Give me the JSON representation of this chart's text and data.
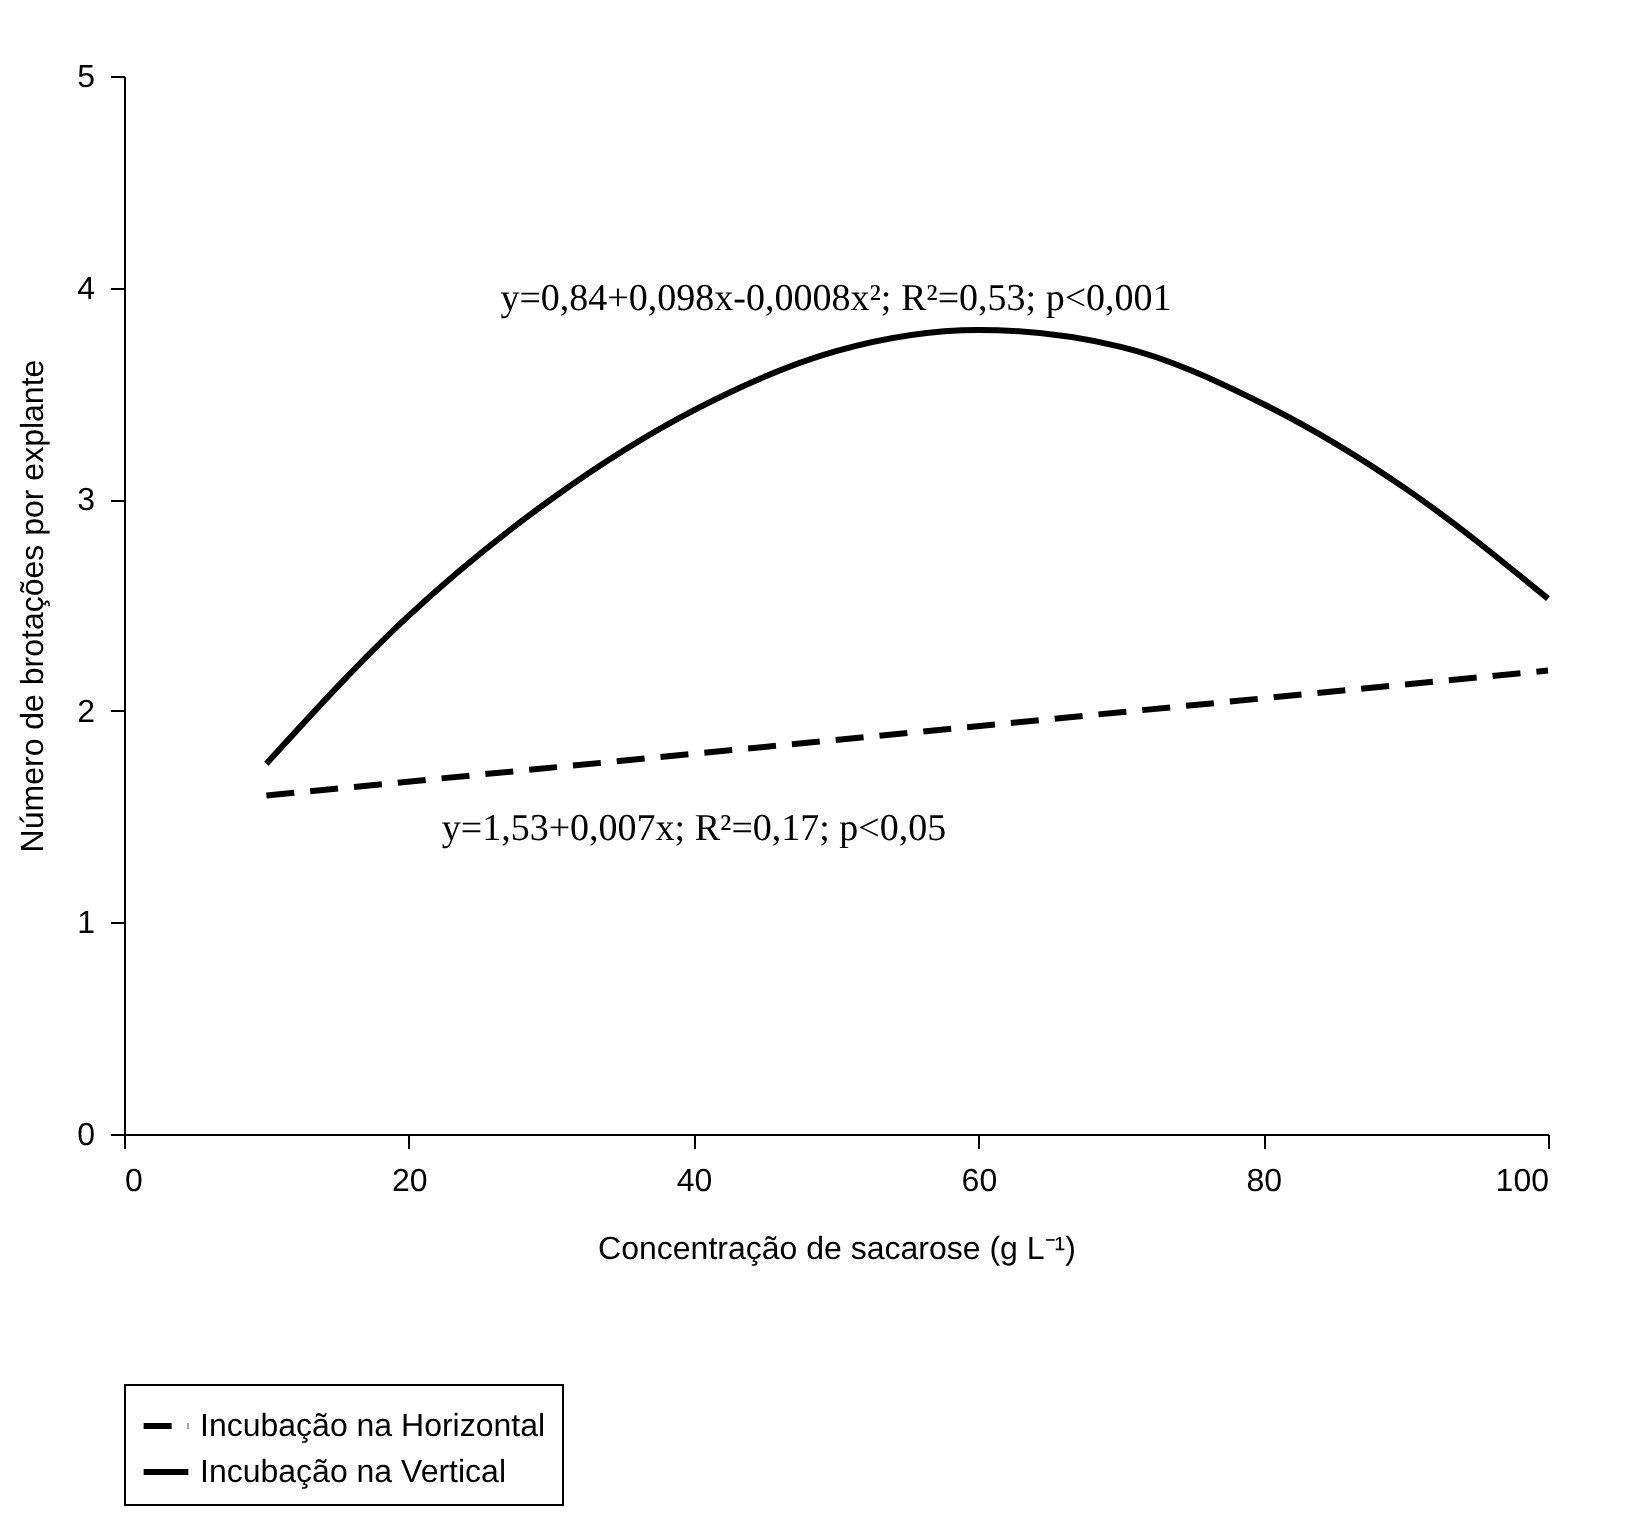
{
  "chart_data": {
    "type": "line",
    "xlabel": "Concentração de sacarose (g L⁻¹)",
    "ylabel": "Número de brotações por explante",
    "xlim": [
      0,
      100
    ],
    "ylim": [
      0,
      5
    ],
    "xticks": [
      0,
      20,
      40,
      60,
      80,
      100
    ],
    "yticks": [
      0,
      1,
      2,
      3,
      4,
      5
    ],
    "grid": false,
    "legend": "bottom",
    "marker": "none",
    "series": [
      {
        "name": "Incubação na Horizontal",
        "color": "#000000",
        "line_style": "dashed",
        "x": [
          10,
          100
        ],
        "values": [
          1.6,
          2.19
        ]
      },
      {
        "name": "Incubação na Vertical",
        "color": "#000000",
        "line_style": "solid",
        "x": [
          10,
          20,
          30,
          40,
          50,
          60,
          70,
          80,
          90,
          100
        ],
        "values": [
          1.75,
          2.45,
          3.0,
          3.42,
          3.7,
          3.8,
          3.72,
          3.45,
          3.05,
          2.53
        ]
      }
    ],
    "annotations": [
      "y=0,84+0,098x-0,0008x²; R²=0,53; p<0,001",
      "y=1,53+0,007x; R²=0,17; p<0,05"
    ]
  }
}
